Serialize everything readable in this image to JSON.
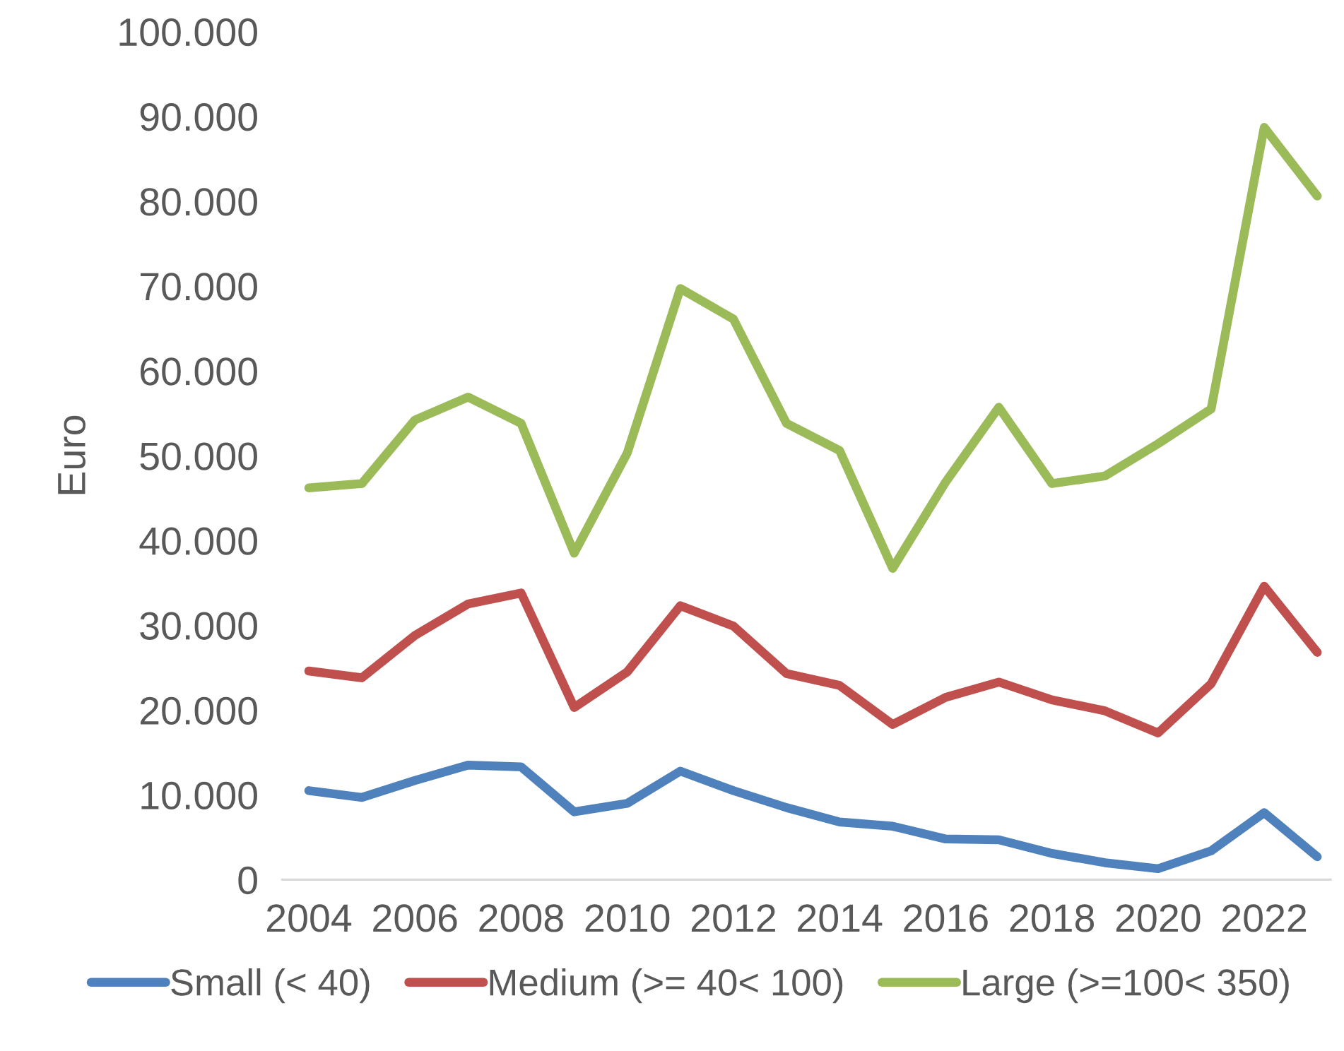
{
  "chart_data": {
    "type": "line",
    "ylabel": "Euro",
    "x": [
      2004,
      2005,
      2006,
      2007,
      2008,
      2009,
      2010,
      2011,
      2012,
      2013,
      2014,
      2015,
      2016,
      2017,
      2018,
      2019,
      2020,
      2021,
      2022,
      2023
    ],
    "series": [
      {
        "name": "Small (< 40)",
        "color": "#4f81bd",
        "values": [
          10500,
          9700,
          11700,
          13500,
          13300,
          8000,
          9000,
          12800,
          10500,
          8500,
          6800,
          6300,
          4800,
          4700,
          3100,
          2000,
          1300,
          3400,
          7900,
          2700
        ]
      },
      {
        "name": "Medium (>= 40< 100)",
        "color": "#c0504d",
        "values": [
          24600,
          23800,
          28800,
          32500,
          33800,
          20300,
          24500,
          32300,
          29900,
          24300,
          22900,
          18300,
          21500,
          23300,
          21200,
          19900,
          17300,
          23100,
          34600,
          26800
        ]
      },
      {
        "name": "Large (>=100< 350)",
        "color": "#9bbb59",
        "values": [
          46200,
          46700,
          54200,
          56900,
          53800,
          38500,
          50300,
          69700,
          66100,
          53800,
          50600,
          36700,
          46900,
          55700,
          46700,
          47600,
          51400,
          55500,
          88700,
          80600
        ]
      }
    ],
    "xlim": [
      2003.5,
      2023.25
    ],
    "xticks": [
      2004,
      2006,
      2008,
      2010,
      2012,
      2014,
      2016,
      2018,
      2020,
      2022
    ],
    "ylim": [
      0,
      100000
    ],
    "yticks": [
      {
        "value": 0,
        "label": "0"
      },
      {
        "value": 10000,
        "label": "10.000"
      },
      {
        "value": 20000,
        "label": "20.000"
      },
      {
        "value": 30000,
        "label": "30.000"
      },
      {
        "value": 40000,
        "label": "40.000"
      },
      {
        "value": 50000,
        "label": "50.000"
      },
      {
        "value": 60000,
        "label": "60.000"
      },
      {
        "value": 70000,
        "label": "70.000"
      },
      {
        "value": 80000,
        "label": "80.000"
      },
      {
        "value": 90000,
        "label": "90.000"
      },
      {
        "value": 100000,
        "label": "100.000"
      }
    ],
    "legend": "bottom",
    "grid": false,
    "marker": "none",
    "line_style": "solid"
  }
}
